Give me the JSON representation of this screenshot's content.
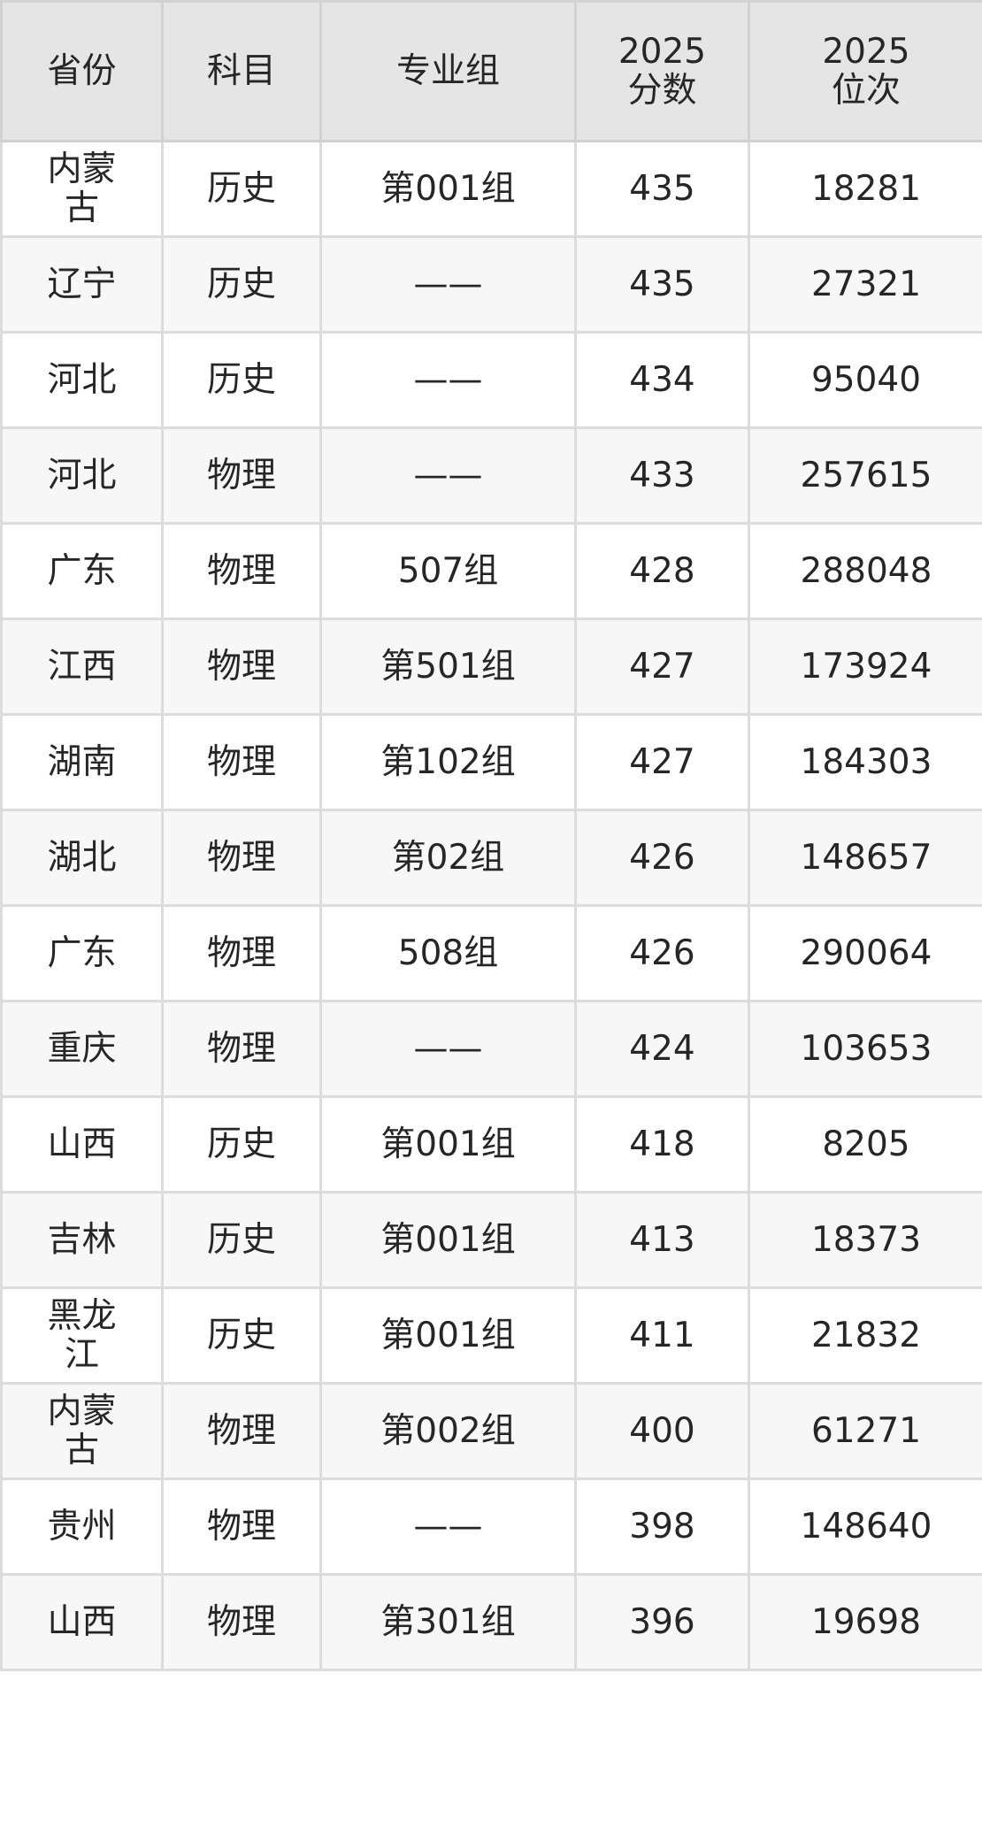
{
  "table": {
    "headers": [
      "省份",
      "科目",
      "专业组",
      "2025\n分数",
      "2025\n位次"
    ],
    "header_lines": [
      [
        "省份"
      ],
      [
        "科目"
      ],
      [
        "专业组"
      ],
      [
        "2025",
        "分数"
      ],
      [
        "2025",
        "位次"
      ]
    ],
    "rows": [
      [
        "内蒙古",
        "历史",
        "第001组",
        "435",
        "18281"
      ],
      [
        "辽宁",
        "历史",
        "——",
        "435",
        "27321"
      ],
      [
        "河北",
        "历史",
        "——",
        "434",
        "95040"
      ],
      [
        "河北",
        "物理",
        "——",
        "433",
        "257615"
      ],
      [
        "广东",
        "物理",
        "507组",
        "428",
        "288048"
      ],
      [
        "江西",
        "物理",
        "第501组",
        "427",
        "173924"
      ],
      [
        "湖南",
        "物理",
        "第102组",
        "427",
        "184303"
      ],
      [
        "湖北",
        "物理",
        "第02组",
        "426",
        "148657"
      ],
      [
        "广东",
        "物理",
        "508组",
        "426",
        "290064"
      ],
      [
        "重庆",
        "物理",
        "——",
        "424",
        "103653"
      ],
      [
        "山西",
        "历史",
        "第001组",
        "418",
        "8205"
      ],
      [
        "吉林",
        "历史",
        "第001组",
        "413",
        "18373"
      ],
      [
        "黑龙江",
        "历史",
        "第001组",
        "411",
        "21832"
      ],
      [
        "内蒙古",
        "物理",
        "第002组",
        "400",
        "61271"
      ],
      [
        "贵州",
        "物理",
        "——",
        "398",
        "148640"
      ],
      [
        "山西",
        "物理",
        "第301组",
        "396",
        "19698"
      ]
    ]
  },
  "colors": {
    "header_bg": "#e5e5e5",
    "stripe_bg": "#f7f7f7",
    "border": "#dcdcdc",
    "text": "#262626"
  }
}
